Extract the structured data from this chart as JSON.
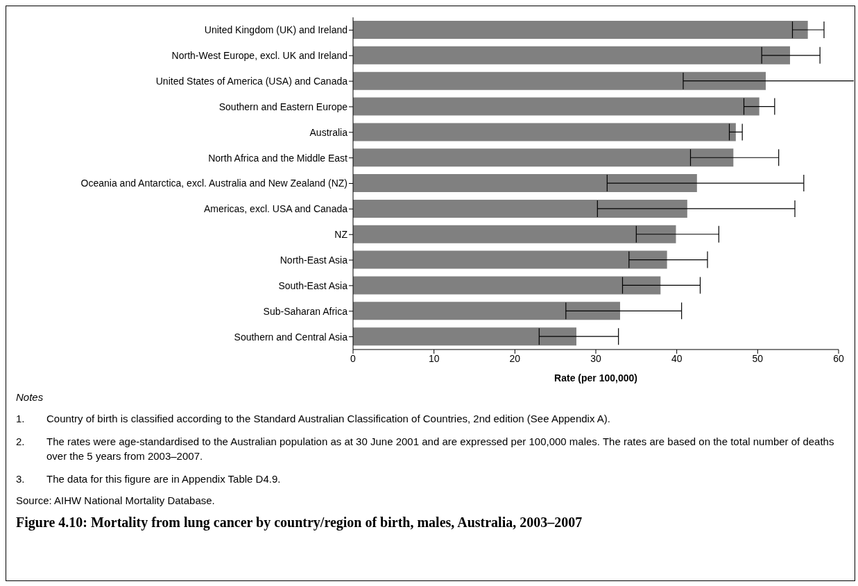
{
  "chart_data": {
    "type": "bar",
    "orientation": "horizontal",
    "title": "Figure 4.10: Mortality from lung cancer by country/region of birth, males, Australia, 2003–2007",
    "xlabel": "Rate (per 100,000)",
    "categories": [
      "United Kingdom (UK) and Ireland",
      "North-West Europe, excl. UK and Ireland",
      "United States of America (USA) and Canada",
      "Southern and Eastern Europe",
      "Australia",
      "North Africa and the Middle East",
      "Oceania and Antarctica, excl. Australia and New Zealand (NZ)",
      "Americas, excl. USA and Canada",
      "NZ",
      "North-East Asia",
      "South-East Asia",
      "Sub-Saharan Africa",
      "Southern and Central Asia"
    ],
    "values": [
      56.2,
      54.0,
      51.0,
      50.2,
      47.3,
      47.0,
      42.5,
      41.3,
      39.9,
      38.8,
      38.0,
      33.0,
      27.6
    ],
    "errors": [
      [
        54.3,
        58.2
      ],
      [
        50.5,
        57.7
      ],
      [
        40.8,
        62.8
      ],
      [
        48.3,
        52.1
      ],
      [
        46.5,
        48.1
      ],
      [
        41.7,
        52.6
      ],
      [
        31.4,
        55.7
      ],
      [
        30.2,
        54.6
      ],
      [
        35.0,
        45.2
      ],
      [
        34.1,
        43.8
      ],
      [
        33.3,
        42.9
      ],
      [
        26.3,
        40.6
      ],
      [
        23.0,
        32.8
      ]
    ],
    "color": "#808080",
    "xlim": [
      0,
      60
    ],
    "xticks": [
      0,
      10,
      20,
      30,
      40,
      50,
      60
    ],
    "grid": false,
    "legend": false,
    "annotations": [
      "Notes",
      "1.\tCountry of birth is classified according to the Standard Australian Classification of Countries, 2nd edition (See Appendix A).",
      "2.\tThe rates were age-standardised to the Australian population as at 30 June 2001 and are expressed per 100,000 males. The rates are based on the total number of deaths over the 5 years from 2003–2007.",
      "3.\tThe data for this figure are in Appendix Table D4.9.",
      "Source: AIHW National Mortality Database."
    ]
  }
}
